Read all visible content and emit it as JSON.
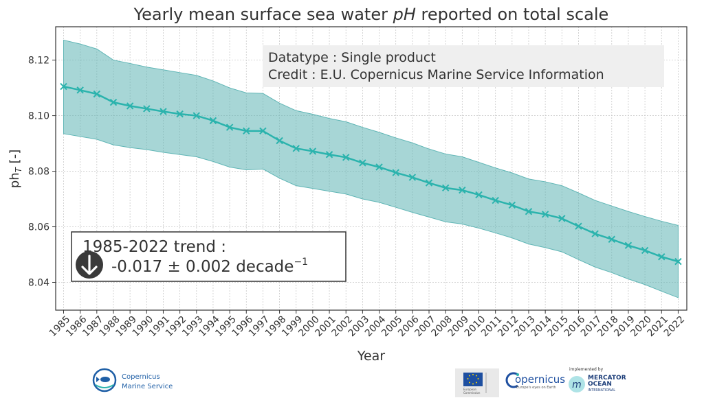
{
  "chart_data": {
    "type": "line",
    "title_parts": [
      "Yearly mean surface sea water ",
      "pH",
      " reported on total scale"
    ],
    "xlabel": "Year",
    "ylabel_main": "ph",
    "ylabel_sub": "T",
    "ylabel_suffix": " [-]",
    "ylim": [
      8.03,
      8.132
    ],
    "yticks": [
      "8.04",
      "8.06",
      "8.08",
      "8.10",
      "8.12"
    ],
    "grid": true,
    "x": [
      "1985",
      "1986",
      "1987",
      "1988",
      "1989",
      "1990",
      "1991",
      "1992",
      "1993",
      "1994",
      "1995",
      "1996",
      "1997",
      "1998",
      "1999",
      "2000",
      "2001",
      "2002",
      "2003",
      "2004",
      "2005",
      "2006",
      "2007",
      "2008",
      "2009",
      "2010",
      "2011",
      "2012",
      "2013",
      "2014",
      "2015",
      "2016",
      "2017",
      "2018",
      "2019",
      "2020",
      "2021",
      "2022"
    ],
    "series": [
      {
        "values": [
          8.1105,
          8.1092,
          8.1078,
          8.1048,
          8.1035,
          8.1025,
          8.1015,
          8.1006,
          8.1,
          8.0982,
          8.0958,
          8.0945,
          8.0945,
          8.091,
          8.0882,
          8.0872,
          8.086,
          8.085,
          8.083,
          8.0815,
          8.0795,
          8.0778,
          8.0758,
          8.074,
          8.0732,
          8.0715,
          8.0695,
          8.0678,
          8.0655,
          8.0645,
          8.063,
          8.0602,
          8.0575,
          8.0555,
          8.0533,
          8.0515,
          8.0492,
          8.0475
        ],
        "upper": [
          8.1272,
          8.1258,
          8.124,
          8.12,
          8.1188,
          8.1175,
          8.1165,
          8.1155,
          8.1145,
          8.1125,
          8.11,
          8.1082,
          8.108,
          8.1045,
          8.1018,
          8.1005,
          8.099,
          8.0978,
          8.0958,
          8.094,
          8.092,
          8.0902,
          8.088,
          8.0862,
          8.0852,
          8.0832,
          8.0812,
          8.0794,
          8.0772,
          8.0762,
          8.0748,
          8.0722,
          8.0695,
          8.0675,
          8.0655,
          8.0637,
          8.062,
          8.0605
        ],
        "lower": [
          8.0935,
          8.0925,
          8.0915,
          8.0895,
          8.0885,
          8.0878,
          8.0868,
          8.086,
          8.0852,
          8.0835,
          8.0815,
          8.0805,
          8.0808,
          8.0775,
          8.0748,
          8.0738,
          8.0728,
          8.0718,
          8.07,
          8.0688,
          8.067,
          8.0652,
          8.0635,
          8.0618,
          8.061,
          8.0595,
          8.0578,
          8.056,
          8.0538,
          8.0525,
          8.051,
          8.0482,
          8.0455,
          8.0435,
          8.0412,
          8.0392,
          8.0368,
          8.0345
        ],
        "color": "#2bb3ad",
        "band_color": "#5fb5b5",
        "marker": "x"
      }
    ],
    "info_box": {
      "line1": "Datatype : Single product",
      "line2": "Credit : E.U. Copernicus Marine Service Information"
    },
    "trend_box": {
      "line1": "1985-2022 trend :",
      "line2": "-0.017 ± 0.002 decade",
      "line2_sup": "−1",
      "direction": "down",
      "icon": "arrow-down-circle-icon"
    }
  },
  "footer": {
    "cms_logo": {
      "line1": "Copernicus",
      "line2": "Marine Service",
      "icon": "fish-icon"
    },
    "eu_logo": {
      "caption_line1": "European",
      "caption_line2": "Commission",
      "icon": "eu-flag-icon"
    },
    "copernicus_logo": {
      "text": "opernicus",
      "tagline": "Europe's eyes on Earth",
      "icon": "copernicus-c-icon"
    },
    "mercator_logo": {
      "prefix": "implemented by",
      "line1": "MERCATOR",
      "line2": "OCEAN",
      "line3": "INTERNATIONAL",
      "icon": "mercator-m-icon"
    }
  },
  "colors": {
    "line": "#2bb3ad",
    "band": "#5fb5b5",
    "text": "#333333",
    "cms_blue": "#1f5fa6",
    "eu_blue": "#1e4fa0",
    "mercator_blue": "#1e3f7a"
  }
}
